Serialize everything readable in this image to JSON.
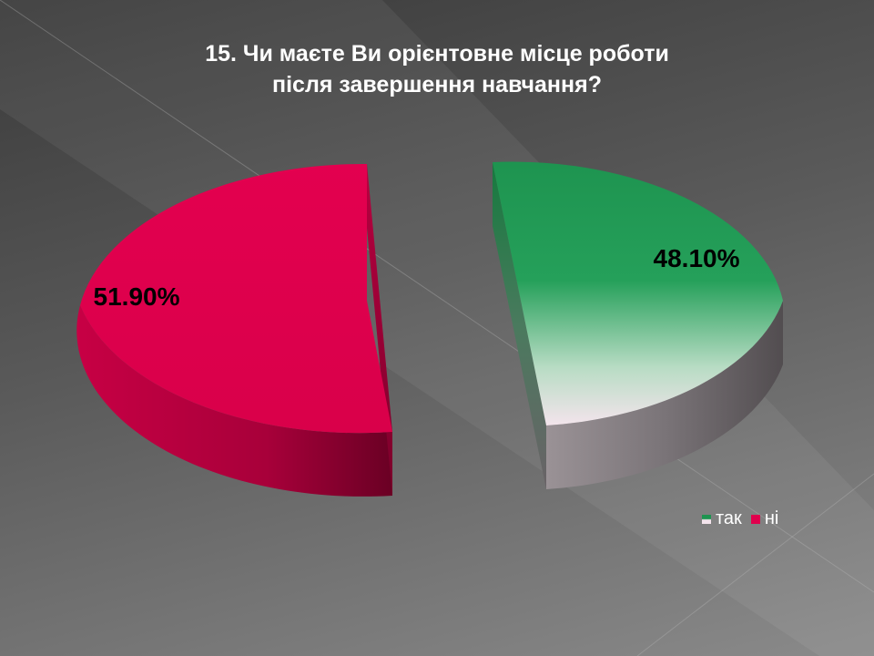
{
  "chart_data": {
    "type": "pie",
    "title": "15. Чи маєте Ви орієнтовне місце роботи після завершення навчання?",
    "title_lines": [
      "15. Чи маєте Ви орієнтовне місце роботи",
      "після завершення навчання?"
    ],
    "slices": [
      {
        "label": "так",
        "value": 48.1,
        "value_label": "48.10%",
        "color": "#1e9450"
      },
      {
        "label": "ні",
        "value": 51.9,
        "value_label": "51.90%",
        "color": "#e0004d"
      }
    ],
    "legend": [
      "так",
      "ні"
    ],
    "legend_position": "bottom-right",
    "style": "3d exploded pie"
  },
  "colors": {
    "background_dark": "#3a3a3a",
    "background_light": "#8a8a8a",
    "title_text": "#ffffff",
    "label_text": "#000000"
  }
}
